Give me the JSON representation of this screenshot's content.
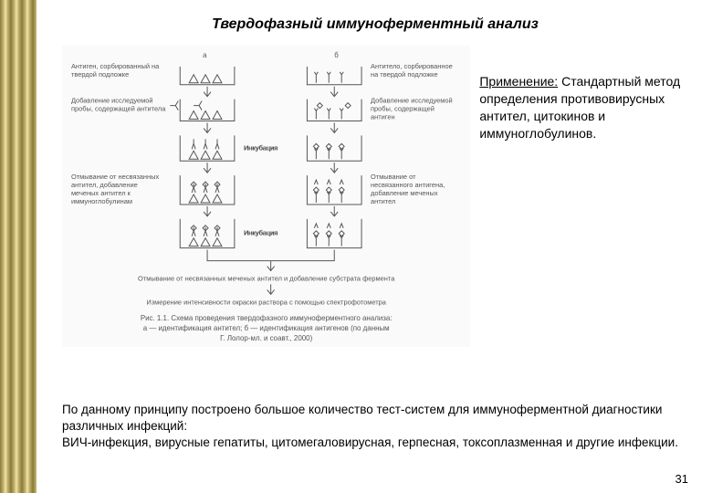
{
  "title": "Твердофазный иммуноферментный анализ",
  "application": {
    "heading": "Применение:",
    "text": "Стандартный метод определения противовирусных антител, цитокинов и иммуноглобулинов."
  },
  "bottom": {
    "line1": "По данному принципу построено большое количество тест-систем для иммуноферментной диагностики различных инфекций:",
    "line2": "ВИЧ-инфекция, вирусные гепатиты, цитомегаловирусная, герпесная,  токсоплазменная и другие инфекции."
  },
  "diagram": {
    "col_a_header": "а",
    "col_b_header": "б",
    "labels_a": {
      "step1": "Антиген, сорбированный на твердой подложке",
      "step2": "Добавление исследуемой пробы, содержащей антитела",
      "step3": "Инкубация",
      "step4": "Отмывание от несвязанных антител, добавление меченых антител к иммуноглобулинам",
      "step5": "Инкубация"
    },
    "labels_b": {
      "step1": "Антитело, сорбированное на твердой подложке",
      "step2": "Добавление исследуемой пробы, содержащей антиген",
      "step3": "Инкубация",
      "step4": "Отмывание от несвязанного антигена, добавление меченых антител",
      "step5": "Инкубация"
    },
    "merge_line": "Отмывание от несвязанных меченых антител и добавление субстрата фермента",
    "spectro": "Измерение интенсивности окраски раствора с помощью спектрофотометра",
    "caption1": "Рис. 1.1. Схема проведения твердофазного иммуноферментного анализа:",
    "caption2": "а — идентификация антител; б — идентификация антигенов (по данным",
    "caption3": "Г. Лолор-мл. и соавт., 2000)",
    "glyph_colors": {
      "stroke": "#555555",
      "bg": "#fafafa"
    },
    "well_color": "#555555",
    "arrow_color": "#555555"
  },
  "page_number": "31",
  "colors": {
    "text": "#000000",
    "diagram_text": "#555555",
    "background": "#ffffff"
  }
}
